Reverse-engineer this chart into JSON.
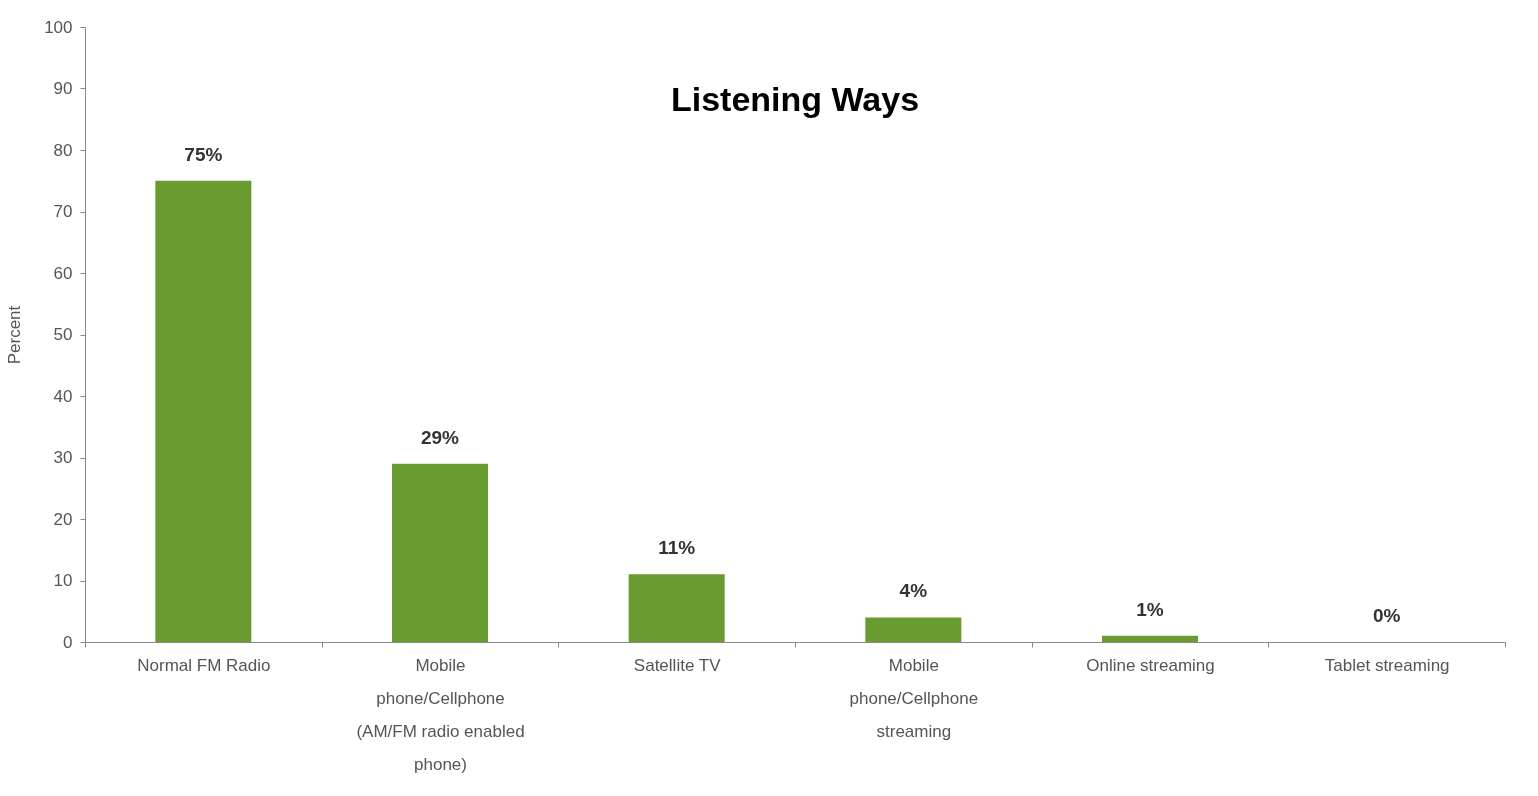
{
  "chart_data": {
    "type": "bar",
    "title": "Listening Ways",
    "ylabel": "Percent",
    "categories": [
      "Normal FM Radio",
      "Mobile phone/Cellphone (AM/FM radio enabled phone)",
      "Satellite TV",
      "Mobile phone/Cellphone streaming",
      "Online streaming",
      "Tablet streaming"
    ],
    "values": [
      75,
      29,
      11,
      4,
      1,
      0
    ],
    "value_labels": [
      "75%",
      "29%",
      "11%",
      "4%",
      "1%",
      "0%"
    ],
    "color": "#699c30",
    "ylim": [
      0,
      100
    ],
    "yticks": [
      0,
      10,
      20,
      30,
      40,
      50,
      60,
      70,
      80,
      90,
      100
    ],
    "grid": false
  }
}
